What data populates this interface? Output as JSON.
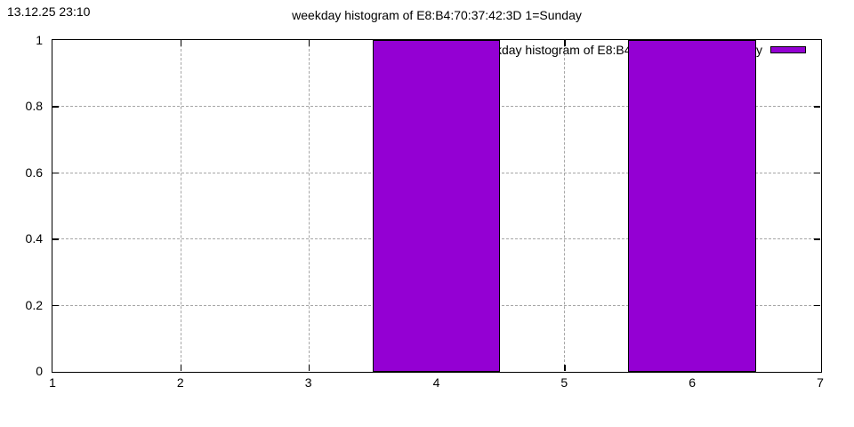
{
  "timestamp": "13.12.25 23:10",
  "chart_data": {
    "type": "bar",
    "title": "weekday histogram of E8:B4:70:37:42:3D 1=Sunday",
    "xlabel": "",
    "ylabel": "",
    "xlim": [
      1,
      7
    ],
    "ylim": [
      0,
      1
    ],
    "x_ticks": [
      1,
      2,
      3,
      4,
      5,
      6,
      7
    ],
    "x_tick_labels": [
      "1",
      "2",
      "3",
      "4",
      "5",
      "6",
      "7"
    ],
    "y_ticks": [
      0,
      0.2,
      0.4,
      0.6,
      0.8,
      1
    ],
    "y_tick_labels": [
      "0",
      "0.2",
      "0.4",
      "0.6",
      "0.8",
      "1"
    ],
    "categories": [
      1,
      2,
      3,
      4,
      5,
      6,
      7
    ],
    "values": [
      0,
      0,
      0,
      1,
      0,
      1,
      0
    ],
    "bar_width": 1,
    "grid": true,
    "legend": {
      "label": "weekday histogram of E8:B4:70:37:42:3D 1=Sunday",
      "position": "top-right"
    },
    "colors": {
      "bar_fill": "#9400d3",
      "bar_border": "#000000",
      "grid_line": "#a6a6a6",
      "axis": "#000000",
      "text": "#000000",
      "background": "#ffffff"
    }
  }
}
